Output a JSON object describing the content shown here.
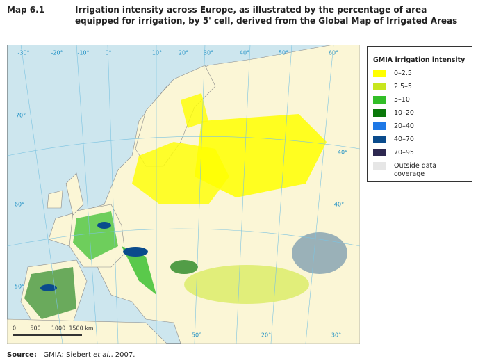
{
  "header": {
    "label": "Map 6.1",
    "title": "Irrigation intensity across Europe, as illustrated by the percentage of area equipped for irrigation, by 5' cell, derived from the Global Map of Irrigated Areas"
  },
  "map": {
    "graticule_labels": [
      "-30°",
      "-20°",
      "-10°",
      "0°",
      "10°",
      "20°",
      "30°",
      "40°",
      "50°",
      "60°",
      "70°",
      "60°",
      "50°",
      "40°",
      "50°",
      "20°",
      "30°",
      "40°"
    ],
    "scale_labels": [
      "0",
      "500",
      "1000",
      "1500 km"
    ]
  },
  "legend": {
    "title": "GMIA irrigation intensity",
    "items": [
      {
        "label": "0–2.5",
        "color": "#ffff00"
      },
      {
        "label": "2.5–5",
        "color": "#c8e61e"
      },
      {
        "label": "5–10",
        "color": "#32be28"
      },
      {
        "label": "10–20",
        "color": "#0a780a"
      },
      {
        "label": "20–40",
        "color": "#1e78e6"
      },
      {
        "label": "40–70",
        "color": "#0a4b8c"
      },
      {
        "label": "70–95",
        "color": "#2d2850"
      },
      {
        "label": "Outside data coverage",
        "color": "#e6e6e6"
      }
    ]
  },
  "source": {
    "label": "Source:",
    "parts": [
      "GMIA; Siebert ",
      "et al.",
      ", 2007."
    ]
  }
}
